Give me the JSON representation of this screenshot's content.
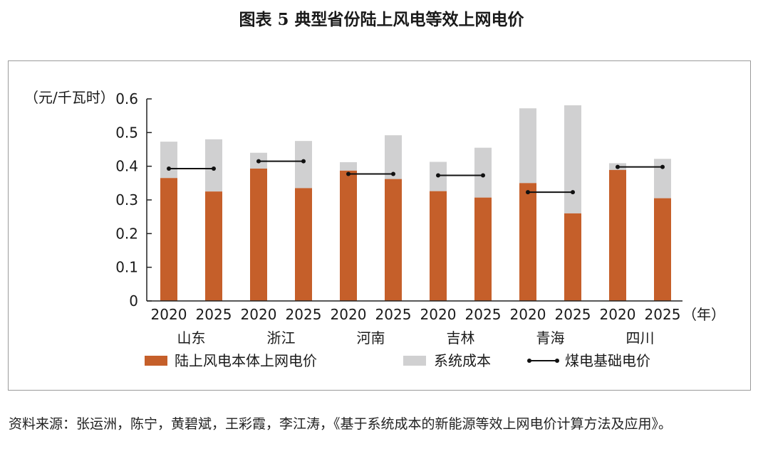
{
  "title": "图表 5  典型省份陆上风电等效上网电价",
  "source": "资料来源：张运洲，陈宁，黄碧斌，王彩霞，李江涛，《基于系统成本的新能源等效上网电价计算方法及应用》。",
  "chart_data": {
    "type": "bar",
    "stacked": true,
    "ylabel": "（元/千瓦时）",
    "xlabel": "（年）",
    "ylim": [
      0,
      0.6
    ],
    "yticks": [
      0,
      0.1,
      0.2,
      0.3,
      0.4,
      0.5,
      0.6
    ],
    "ytick_labels": [
      "0",
      "0.1",
      "0.2",
      "0.3",
      "0.4",
      "0.5",
      "0.6"
    ],
    "grid": false,
    "legend": "bottom",
    "groups": [
      {
        "name": "山东",
        "years": [
          "2020",
          "2025"
        ],
        "onshore": [
          0.365,
          0.325
        ],
        "system_cost": [
          0.108,
          0.155
        ],
        "coal_base": 0.393
      },
      {
        "name": "浙江",
        "years": [
          "2020",
          "2025"
        ],
        "onshore": [
          0.393,
          0.335
        ],
        "system_cost": [
          0.047,
          0.14
        ],
        "coal_base": 0.415
      },
      {
        "name": "河南",
        "years": [
          "2020",
          "2025"
        ],
        "onshore": [
          0.387,
          0.362
        ],
        "system_cost": [
          0.025,
          0.13
        ],
        "coal_base": 0.377
      },
      {
        "name": "吉林",
        "years": [
          "2020",
          "2025"
        ],
        "onshore": [
          0.326,
          0.307
        ],
        "system_cost": [
          0.087,
          0.148
        ],
        "coal_base": 0.373
      },
      {
        "name": "青海",
        "years": [
          "2020",
          "2025"
        ],
        "onshore": [
          0.35,
          0.26
        ],
        "system_cost": [
          0.222,
          0.321
        ],
        "coal_base": 0.323
      },
      {
        "name": "四川",
        "years": [
          "2020",
          "2025"
        ],
        "onshore": [
          0.389,
          0.305
        ],
        "system_cost": [
          0.02,
          0.117
        ],
        "coal_base": 0.398
      }
    ],
    "series": [
      {
        "name": "陆上风电本体上网电价",
        "key": "onshore",
        "color": "#C55F2A"
      },
      {
        "name": "系统成本",
        "key": "system_cost",
        "color": "#D0D0D1"
      },
      {
        "name": "煤电基础电价",
        "key": "coal_base",
        "color": "#111111"
      }
    ]
  }
}
